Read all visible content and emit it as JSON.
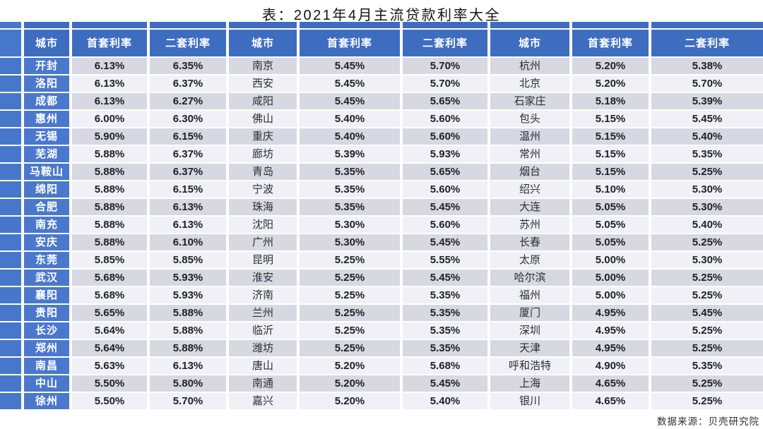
{
  "colors": {
    "header_blue": "#3e6dc0",
    "city_column_blue": "#4a78cd",
    "row_stripe_dark": "#d8d8e2",
    "row_stripe_light": "#f0f0f6",
    "header_text": "#ffffff",
    "value_text": "#20202a",
    "page_background": "#ffffff"
  },
  "chart_data": {
    "type": "table",
    "title": "表：2021年4月主流贷款利率大全",
    "source": "数据来源：贝壳研究院",
    "columns": [
      "城市",
      "首套利率",
      "二套利率",
      "城市",
      "首套利率",
      "二套利率",
      "城市",
      "首套利率",
      "二套利率"
    ],
    "rows": [
      [
        "开封",
        "6.13%",
        "6.35%",
        "南京",
        "5.45%",
        "5.70%",
        "杭州",
        "5.20%",
        "5.38%"
      ],
      [
        "洛阳",
        "6.13%",
        "6.37%",
        "西安",
        "5.45%",
        "5.70%",
        "北京",
        "5.20%",
        "5.70%"
      ],
      [
        "成都",
        "6.13%",
        "6.27%",
        "咸阳",
        "5.45%",
        "5.65%",
        "石家庄",
        "5.18%",
        "5.39%"
      ],
      [
        "惠州",
        "6.00%",
        "6.30%",
        "佛山",
        "5.40%",
        "5.60%",
        "包头",
        "5.15%",
        "5.45%"
      ],
      [
        "无锡",
        "5.90%",
        "6.15%",
        "重庆",
        "5.40%",
        "5.60%",
        "温州",
        "5.15%",
        "5.40%"
      ],
      [
        "芜湖",
        "5.88%",
        "6.37%",
        "廊坊",
        "5.39%",
        "5.93%",
        "常州",
        "5.15%",
        "5.35%"
      ],
      [
        "马鞍山",
        "5.88%",
        "6.37%",
        "青岛",
        "5.35%",
        "5.65%",
        "烟台",
        "5.15%",
        "5.25%"
      ],
      [
        "绵阳",
        "5.88%",
        "6.15%",
        "宁波",
        "5.35%",
        "5.60%",
        "绍兴",
        "5.10%",
        "5.30%"
      ],
      [
        "合肥",
        "5.88%",
        "6.13%",
        "珠海",
        "5.35%",
        "5.45%",
        "大连",
        "5.05%",
        "5.30%"
      ],
      [
        "南充",
        "5.88%",
        "6.13%",
        "沈阳",
        "5.30%",
        "5.60%",
        "苏州",
        "5.05%",
        "5.40%"
      ],
      [
        "安庆",
        "5.88%",
        "6.10%",
        "广州",
        "5.30%",
        "5.45%",
        "长春",
        "5.05%",
        "5.25%"
      ],
      [
        "东莞",
        "5.85%",
        "5.85%",
        "昆明",
        "5.25%",
        "5.55%",
        "太原",
        "5.00%",
        "5.30%"
      ],
      [
        "武汉",
        "5.68%",
        "5.93%",
        "淮安",
        "5.25%",
        "5.45%",
        "哈尔滨",
        "5.00%",
        "5.25%"
      ],
      [
        "襄阳",
        "5.68%",
        "5.93%",
        "济南",
        "5.25%",
        "5.35%",
        "福州",
        "5.00%",
        "5.25%"
      ],
      [
        "贵阳",
        "5.65%",
        "5.88%",
        "兰州",
        "5.25%",
        "5.35%",
        "厦门",
        "4.95%",
        "5.45%"
      ],
      [
        "长沙",
        "5.64%",
        "5.88%",
        "临沂",
        "5.25%",
        "5.35%",
        "深圳",
        "4.95%",
        "5.25%"
      ],
      [
        "郑州",
        "5.64%",
        "5.88%",
        "潍坊",
        "5.25%",
        "5.35%",
        "天津",
        "4.95%",
        "5.25%"
      ],
      [
        "南昌",
        "5.63%",
        "6.13%",
        "唐山",
        "5.20%",
        "5.68%",
        "呼和浩特",
        "4.90%",
        "5.35%"
      ],
      [
        "中山",
        "5.50%",
        "5.80%",
        "南通",
        "5.20%",
        "5.45%",
        "上海",
        "4.65%",
        "5.25%"
      ],
      [
        "徐州",
        "5.50%",
        "5.70%",
        "嘉兴",
        "5.20%",
        "5.40%",
        "银川",
        "4.65%",
        "5.25%"
      ]
    ]
  }
}
